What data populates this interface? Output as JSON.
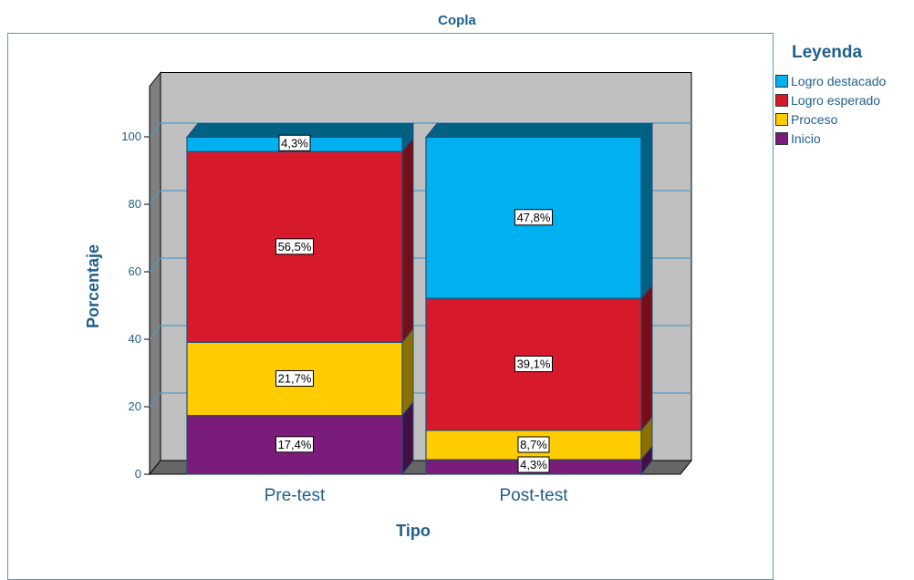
{
  "chart_data": {
    "type": "bar",
    "stacked": true,
    "three_d": true,
    "title": "Copla",
    "xlabel": "Tipo",
    "ylabel": "Porcentaje",
    "ylim": [
      0,
      100
    ],
    "yticks": [
      0,
      20,
      40,
      60,
      80,
      100
    ],
    "categories": [
      "Pre-test",
      "Post-test"
    ],
    "legend_title": "Leyenda",
    "legend_position": "right",
    "grid": true,
    "series": [
      {
        "name": "Inicio",
        "color": "#7b1c7a",
        "values": [
          17.4,
          4.3
        ],
        "labels": [
          "17,4%",
          "4,3%"
        ]
      },
      {
        "name": "Proceso",
        "color": "#ffcc00",
        "values": [
          21.7,
          8.7
        ],
        "labels": [
          "21,7%",
          "8,7%"
        ]
      },
      {
        "name": "Logro esperado",
        "color": "#d7192c",
        "values": [
          56.5,
          39.1
        ],
        "labels": [
          "56,5%",
          "39,1%"
        ]
      },
      {
        "name": "Logro destacado",
        "color": "#00b0ef",
        "values": [
          4.3,
          47.8
        ],
        "labels": [
          "4,3%",
          "47,8%"
        ]
      }
    ],
    "legend_order": [
      "Logro destacado",
      "Logro esperado",
      "Proceso",
      "Inicio"
    ]
  }
}
